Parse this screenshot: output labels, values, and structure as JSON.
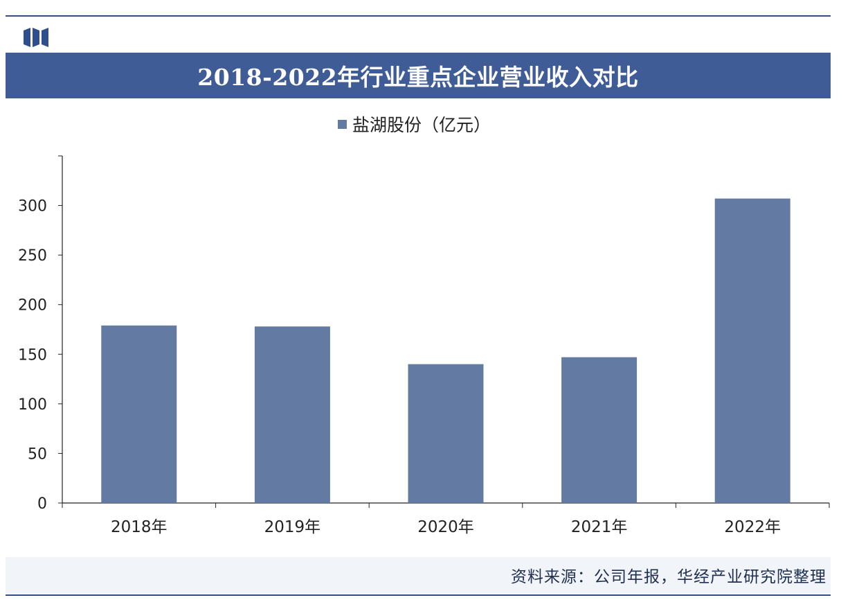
{
  "header": {
    "title": "2018-2022年行业重点企业营业收入对比"
  },
  "legend": {
    "label": "盐湖股份（亿元）"
  },
  "footer": {
    "source": "资料来源：公司年报，华经产业研究院整理"
  },
  "colors": {
    "bar": "#637ba3",
    "title_bar": "#3f5c97",
    "accent": "#2f4f8c"
  },
  "chart_data": {
    "type": "bar",
    "categories": [
      "2018年",
      "2019年",
      "2020年",
      "2021年",
      "2022年"
    ],
    "series": [
      {
        "name": "盐湖股份（亿元）",
        "values": [
          179,
          178,
          140,
          147,
          307
        ]
      }
    ],
    "yticks": [
      0,
      50,
      100,
      150,
      200,
      250,
      300
    ],
    "ylim": [
      0,
      350
    ],
    "title": "2018-2022年行业重点企业营业收入对比",
    "xlabel": "",
    "ylabel": "",
    "grid": false,
    "legend_position": "top-center"
  }
}
